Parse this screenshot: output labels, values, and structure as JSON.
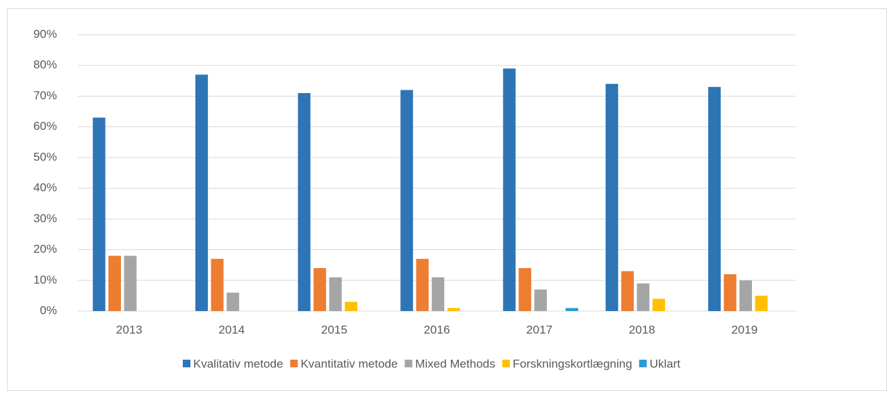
{
  "chart_data": {
    "type": "bar",
    "categories": [
      "2013",
      "2014",
      "2015",
      "2016",
      "2017",
      "2018",
      "2019"
    ],
    "series": [
      {
        "name": "Kvalitativ metode",
        "color": "#2e75b6",
        "values": [
          63,
          77,
          71,
          72,
          79,
          74,
          73
        ]
      },
      {
        "name": "Kvantitativ metode",
        "color": "#ed7d31",
        "values": [
          18,
          17,
          14,
          17,
          14,
          13,
          12
        ]
      },
      {
        "name": "Mixed Methods",
        "color": "#a5a5a5",
        "values": [
          18,
          6,
          11,
          11,
          7,
          9,
          10
        ]
      },
      {
        "name": "Forskningskortlægning",
        "color": "#ffc000",
        "values": [
          0,
          0,
          3,
          1,
          0,
          4,
          5
        ]
      },
      {
        "name": "Uklart",
        "color": "#2e9bd6",
        "values": [
          0,
          0,
          0,
          0,
          1,
          0,
          0
        ]
      }
    ],
    "ylim": [
      0,
      90
    ],
    "yticks": [
      {
        "value": 0,
        "label": "0%"
      },
      {
        "value": 10,
        "label": "10%"
      },
      {
        "value": 20,
        "label": "20%"
      },
      {
        "value": 30,
        "label": "30%"
      },
      {
        "value": 40,
        "label": "40%"
      },
      {
        "value": 50,
        "label": "50%"
      },
      {
        "value": 60,
        "label": "60%"
      },
      {
        "value": 70,
        "label": "70%"
      },
      {
        "value": 80,
        "label": "80%"
      },
      {
        "value": 90,
        "label": "90%"
      }
    ],
    "grid": true,
    "legend": "bottom"
  }
}
